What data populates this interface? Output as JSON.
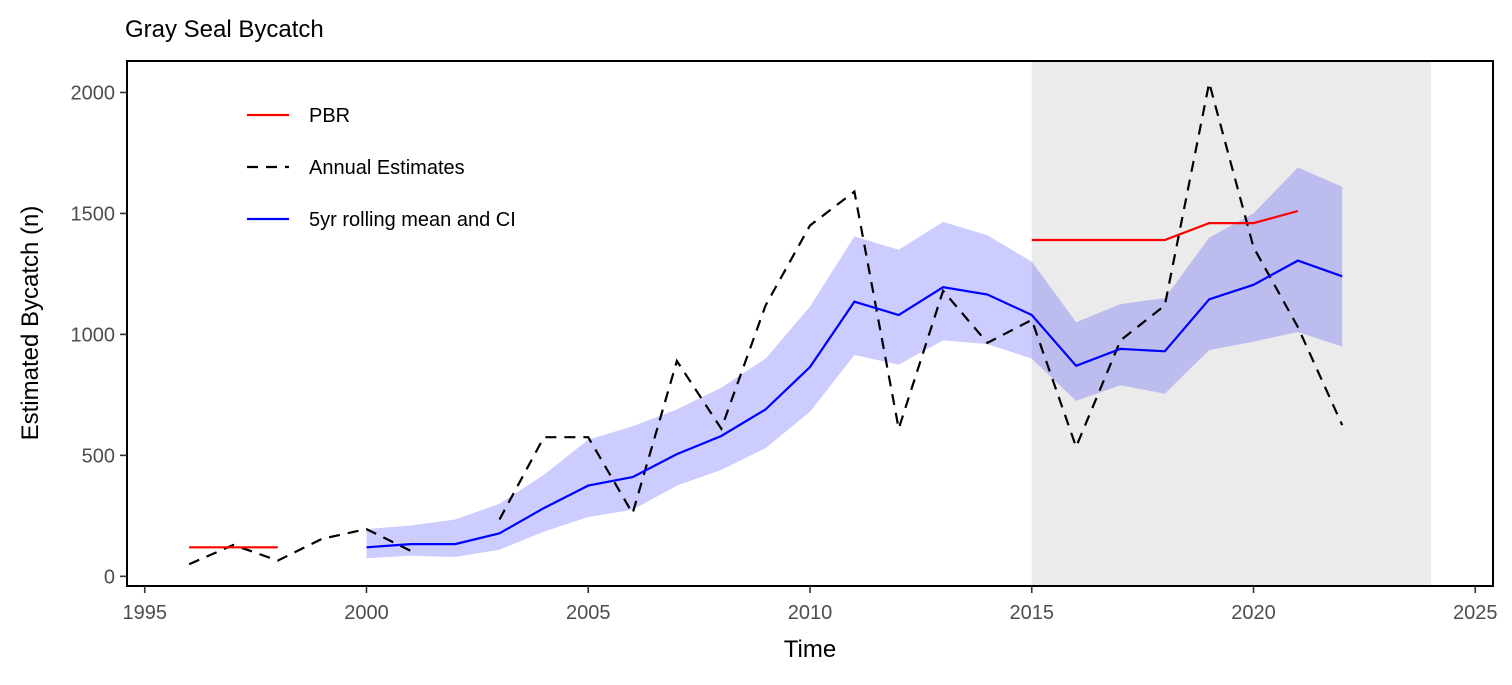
{
  "chart_data": {
    "type": "line",
    "title": "Gray Seal Bycatch",
    "xlabel": "Time",
    "ylabel": "Estimated Bycatch (n)",
    "xlim": [
      1994.6,
      2025.4
    ],
    "ylim": [
      -40,
      2130
    ],
    "x_ticks": [
      1995,
      2000,
      2005,
      2010,
      2015,
      2020,
      2025
    ],
    "y_ticks": [
      0,
      500,
      1000,
      1500,
      2000
    ],
    "shaded_region": {
      "x_start": 2015,
      "x_end": 2024,
      "color": "#ebebeb"
    },
    "grid": false,
    "legend_position": "top-left",
    "series": [
      {
        "name": "PBR",
        "color": "#ff0000",
        "style": "solid",
        "segments": [
          {
            "x": [
              1996,
              1997,
              1998
            ],
            "y": [
              120,
              120,
              120
            ]
          },
          {
            "x": [
              2015,
              2016,
              2017,
              2018,
              2019,
              2020,
              2021
            ],
            "y": [
              1390,
              1390,
              1390,
              1390,
              1460,
              1460,
              1510
            ]
          }
        ]
      },
      {
        "name": "Annual Estimates",
        "color": "#000000",
        "style": "dashed",
        "x": [
          1996,
          1997,
          1998,
          1999,
          2000,
          2001,
          2002,
          2003,
          2004,
          2005,
          2006,
          2007,
          2008,
          2009,
          2010,
          2011,
          2012,
          2013,
          2014,
          2015,
          2016,
          2017,
          2018,
          2019,
          2020,
          2021,
          2022
        ],
        "y": [
          50,
          130,
          65,
          155,
          195,
          105,
          null,
          235,
          575,
          575,
          260,
          890,
          610,
          1120,
          1450,
          1590,
          610,
          1180,
          965,
          1060,
          535,
          975,
          1120,
          2040,
          1360,
          1030,
          625
        ]
      },
      {
        "name": "5yr rolling mean and CI",
        "color": "#0000ff",
        "band_color": "#0000ff",
        "band_opacity": 0.2,
        "style": "solid",
        "x": [
          2000,
          2001,
          2002,
          2003,
          2004,
          2005,
          2006,
          2007,
          2008,
          2009,
          2010,
          2011,
          2012,
          2013,
          2014,
          2015,
          2016,
          2017,
          2018,
          2019,
          2020,
          2021,
          2022
        ],
        "y": [
          120,
          133,
          133,
          178,
          282,
          375,
          410,
          505,
          580,
          690,
          865,
          1135,
          1080,
          1195,
          1165,
          1080,
          870,
          940,
          930,
          1145,
          1205,
          1305,
          1240
        ],
        "lower": [
          75,
          85,
          80,
          110,
          185,
          245,
          275,
          375,
          440,
          530,
          680,
          915,
          875,
          975,
          960,
          900,
          725,
          790,
          755,
          935,
          970,
          1010,
          950
        ],
        "upper": [
          195,
          210,
          235,
          300,
          420,
          565,
          620,
          690,
          780,
          900,
          1115,
          1405,
          1350,
          1465,
          1410,
          1300,
          1050,
          1125,
          1150,
          1400,
          1500,
          1690,
          1610
        ]
      }
    ]
  }
}
